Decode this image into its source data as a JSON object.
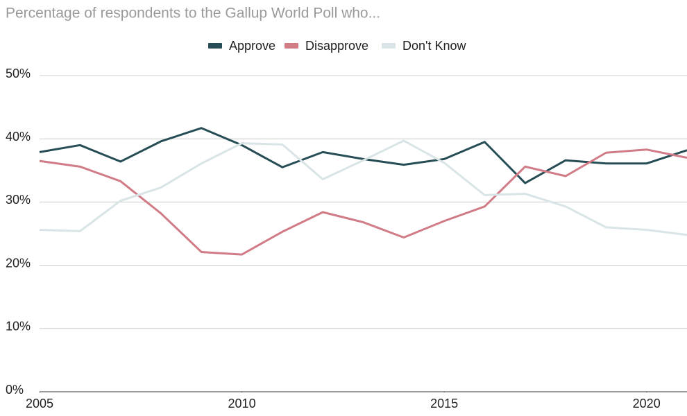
{
  "chart_data": {
    "type": "line",
    "title": "Percentage of respondents to the Gallup World Poll who...",
    "x": [
      2005,
      2006,
      2007,
      2008,
      2009,
      2010,
      2011,
      2012,
      2013,
      2014,
      2015,
      2016,
      2017,
      2018,
      2019,
      2020,
      2021
    ],
    "series": [
      {
        "name": "Approve",
        "color": "#264d55",
        "values": [
          37.9,
          39.0,
          36.4,
          39.6,
          41.7,
          39.0,
          35.5,
          37.9,
          36.8,
          35.9,
          36.8,
          39.5,
          33.0,
          36.6,
          36.1,
          36.1,
          38.2
        ]
      },
      {
        "name": "Disapprove",
        "color": "#d17b87",
        "values": [
          36.5,
          35.6,
          33.3,
          28.2,
          22.1,
          21.7,
          25.3,
          28.4,
          26.8,
          24.4,
          27.0,
          29.3,
          35.6,
          34.1,
          37.8,
          38.3,
          37.0
        ]
      },
      {
        "name": "Don't Know",
        "color": "#d9e4e6",
        "values": [
          25.6,
          25.4,
          30.2,
          32.3,
          36.1,
          39.3,
          39.1,
          33.6,
          36.6,
          39.7,
          36.2,
          31.1,
          31.3,
          29.3,
          26.0,
          25.6,
          24.8
        ]
      }
    ],
    "xlim": [
      2005,
      2021
    ],
    "xticks": [
      2005,
      2010,
      2015,
      2020
    ],
    "ylim": [
      0,
      50
    ],
    "yticks": [
      {
        "value": 0,
        "label": "0%"
      },
      {
        "value": 10,
        "label": "10%"
      },
      {
        "value": 20,
        "label": "20%"
      },
      {
        "value": 30,
        "label": "30%"
      },
      {
        "value": 40,
        "label": "40%"
      },
      {
        "value": 50,
        "label": "50%"
      }
    ],
    "grid": true,
    "legend": "top"
  }
}
